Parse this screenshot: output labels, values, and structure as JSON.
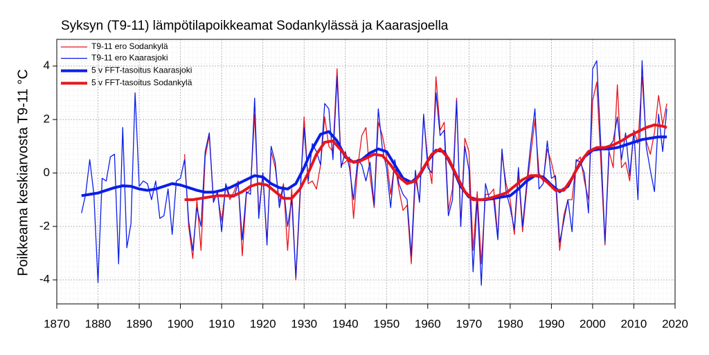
{
  "chart_data": {
    "type": "line",
    "title": "Syksyn (T9-11) lämpötilapoikkeamat Sodankylässä ja Kaarasjoella",
    "y_label": "Poikkeama keskiarvosta T9-11 °C",
    "xlim": [
      1870,
      2020
    ],
    "xticks": [
      1870,
      1880,
      1890,
      1900,
      1910,
      1920,
      1930,
      1940,
      1950,
      1960,
      1970,
      1980,
      1990,
      2000,
      2010,
      2020
    ],
    "ylim": [
      -4.9,
      5
    ],
    "yticks": [
      -4,
      -2,
      0,
      2,
      4
    ],
    "grid": true,
    "legend": "upper left",
    "x": [
      1876,
      1877,
      1878,
      1879,
      1880,
      1881,
      1882,
      1883,
      1884,
      1885,
      1886,
      1887,
      1888,
      1889,
      1890,
      1891,
      1892,
      1893,
      1894,
      1895,
      1896,
      1897,
      1898,
      1899,
      1900,
      1901,
      1902,
      1903,
      1904,
      1905,
      1906,
      1907,
      1908,
      1909,
      1910,
      1911,
      1912,
      1913,
      1914,
      1915,
      1916,
      1917,
      1918,
      1919,
      1920,
      1921,
      1922,
      1923,
      1924,
      1925,
      1926,
      1927,
      1928,
      1929,
      1930,
      1931,
      1932,
      1933,
      1934,
      1935,
      1936,
      1937,
      1938,
      1939,
      1940,
      1941,
      1942,
      1943,
      1944,
      1945,
      1946,
      1947,
      1948,
      1949,
      1950,
      1951,
      1952,
      1953,
      1954,
      1955,
      1956,
      1957,
      1958,
      1959,
      1960,
      1961,
      1962,
      1963,
      1964,
      1965,
      1966,
      1967,
      1968,
      1969,
      1970,
      1971,
      1972,
      1973,
      1974,
      1975,
      1976,
      1977,
      1978,
      1979,
      1980,
      1981,
      1982,
      1983,
      1984,
      1985,
      1986,
      1987,
      1988,
      1989,
      1990,
      1991,
      1992,
      1993,
      1994,
      1995,
      1996,
      1997,
      1998,
      1999,
      2000,
      2001,
      2002,
      2003,
      2004,
      2005,
      2006,
      2007,
      2008,
      2009,
      2010,
      2011,
      2012,
      2013,
      2014,
      2015,
      2016,
      2017,
      2018
    ],
    "series": [
      {
        "name": "T9-11 ero Sodankylä",
        "color": "#e8141c",
        "width": 1.3,
        "values": [
          null,
          null,
          null,
          null,
          null,
          null,
          null,
          null,
          null,
          null,
          null,
          null,
          null,
          null,
          null,
          null,
          null,
          null,
          null,
          null,
          null,
          null,
          null,
          null,
          null,
          0.7,
          -2.0,
          -3.2,
          -1.0,
          -2.9,
          0.6,
          1.4,
          -1.0,
          -0.8,
          -1.8,
          -0.5,
          -1.0,
          -0.7,
          -0.3,
          -3.1,
          -0.8,
          -0.6,
          2.2,
          -1.5,
          0.0,
          -2.6,
          0.8,
          0.2,
          -1.1,
          -0.4,
          -2.9,
          -0.6,
          -4.0,
          -1.0,
          2.1,
          -0.4,
          -0.3,
          -0.6,
          0.3,
          2.1,
          1.0,
          0.8,
          3.9,
          0.3,
          0.4,
          0.6,
          -1.7,
          0.2,
          1.4,
          1.7,
          -0.1,
          -1.3,
          1.9,
          1.4,
          0.6,
          -0.8,
          0.4,
          -0.6,
          -1.4,
          -1.2,
          -3.4,
          -0.2,
          -1.0,
          2.1,
          0.5,
          -0.4,
          3.6,
          1.6,
          1.9,
          -1.4,
          -0.6,
          2.8,
          -2.0,
          1.3,
          0.8,
          -2.9,
          -0.7,
          -3.4,
          -0.8,
          -0.8,
          -0.6,
          -2.4,
          0.7,
          -0.4,
          -1.0,
          -2.3,
          0.0,
          -2.2,
          -0.6,
          0.7,
          2.0,
          0.0,
          -0.3,
          0.9,
          0.4,
          -0.3,
          -2.9,
          -1.6,
          -1.0,
          -1.0,
          0.4,
          0.6,
          -0.3,
          -1.0,
          2.7,
          3.4,
          0.4,
          -2.7,
          0.8,
          0.2,
          3.3,
          0.2,
          0.4,
          -0.3,
          1.6,
          1.1,
          3.6,
          1.2,
          0.7,
          1.5,
          2.9,
          1.8,
          2.6
        ]
      },
      {
        "name": "T9-11 ero Kaarasjoki",
        "color": "#0a1ee6",
        "width": 1.3,
        "values": [
          -1.5,
          -0.8,
          0.5,
          -0.8,
          -4.1,
          -0.2,
          -0.3,
          0.6,
          0.7,
          -3.4,
          1.7,
          -2.8,
          -1.9,
          3.0,
          -0.5,
          -0.3,
          -0.4,
          -1.0,
          -0.3,
          -1.7,
          -1.6,
          -0.6,
          -2.3,
          -0.3,
          -0.2,
          0.5,
          -1.8,
          -2.9,
          -1.3,
          -2.0,
          0.8,
          1.5,
          -1.1,
          -0.7,
          -2.2,
          -0.4,
          -0.9,
          -0.9,
          -0.4,
          -2.5,
          -0.7,
          -0.8,
          2.8,
          -1.7,
          0.0,
          -2.7,
          1.0,
          0.4,
          -1.3,
          -0.5,
          -2.0,
          -1.0,
          -3.9,
          -0.8,
          1.7,
          -0.3,
          1.1,
          0.8,
          0.3,
          2.6,
          2.4,
          0.5,
          3.6,
          0.2,
          0.8,
          0.2,
          -1.0,
          0.5,
          0.3,
          -0.3,
          0.4,
          -1.2,
          2.4,
          0.9,
          0.2,
          -1.3,
          0.5,
          -0.4,
          -0.8,
          -1.0,
          -3.1,
          0.1,
          -1.1,
          2.2,
          0.2,
          0.0,
          3.0,
          1.4,
          1.6,
          -1.6,
          -1.0,
          2.7,
          -2.0,
          1.0,
          0.1,
          -3.7,
          -1.0,
          -4.2,
          -0.4,
          -1.0,
          -1.0,
          -2.5,
          0.9,
          -0.7,
          -1.3,
          -2.1,
          0.2,
          -2.0,
          -0.4,
          1.1,
          2.4,
          -0.6,
          -0.4,
          1.2,
          -0.2,
          -0.1,
          -2.6,
          -1.8,
          -1.0,
          -2.2,
          0.5,
          0.4,
          0.0,
          -1.5,
          3.9,
          4.2,
          1.0,
          -2.6,
          1.0,
          1.2,
          2.1,
          0.5,
          1.5,
          -0.1,
          1.6,
          -1.0,
          4.2,
          1.0,
          0.1,
          -0.7,
          2.2,
          0.8,
          2.4
        ]
      },
      {
        "name": "5 v FFT-tasoitus Kaarasjoki",
        "color": "#0a1ee6",
        "width": 4,
        "x": [
          1876,
          1878,
          1880,
          1882,
          1884,
          1886,
          1888,
          1890,
          1892,
          1894,
          1896,
          1898,
          1900,
          1902,
          1904,
          1906,
          1908,
          1910,
          1912,
          1914,
          1916,
          1918,
          1920,
          1922,
          1924,
          1926,
          1928,
          1930,
          1932,
          1934,
          1936,
          1938,
          1940,
          1942,
          1944,
          1946,
          1948,
          1950,
          1952,
          1954,
          1956,
          1958,
          1960,
          1962,
          1964,
          1966,
          1968,
          1970,
          1972,
          1974,
          1976,
          1978,
          1980,
          1982,
          1984,
          1986,
          1988,
          1990,
          1992,
          1994,
          1996,
          1998,
          2000,
          2002,
          2004,
          2006,
          2008,
          2010,
          2012,
          2014,
          2016,
          2018
        ],
        "values": [
          -0.85,
          -0.8,
          -0.75,
          -0.65,
          -0.55,
          -0.48,
          -0.5,
          -0.6,
          -0.65,
          -0.6,
          -0.5,
          -0.4,
          -0.45,
          -0.55,
          -0.65,
          -0.72,
          -0.72,
          -0.65,
          -0.55,
          -0.4,
          -0.25,
          -0.1,
          -0.15,
          -0.4,
          -0.55,
          -0.6,
          -0.4,
          0.2,
          0.9,
          1.45,
          1.55,
          1.2,
          0.6,
          0.4,
          0.5,
          0.75,
          0.9,
          0.8,
          0.3,
          -0.2,
          -0.35,
          -0.1,
          0.45,
          0.85,
          0.8,
          0.2,
          -0.5,
          -0.9,
          -1.0,
          -1.0,
          -0.95,
          -0.9,
          -0.85,
          -0.6,
          -0.3,
          -0.1,
          -0.15,
          -0.45,
          -0.7,
          -0.5,
          0.1,
          0.6,
          0.85,
          0.9,
          0.9,
          0.95,
          1.05,
          1.15,
          1.25,
          1.3,
          1.35,
          1.35
        ]
      },
      {
        "name": "5 v FFT-tasoitus Sodankylä",
        "color": "#e8141c",
        "width": 4,
        "x": [
          1901,
          1903,
          1905,
          1907,
          1909,
          1911,
          1913,
          1915,
          1917,
          1919,
          1921,
          1923,
          1925,
          1927,
          1929,
          1931,
          1933,
          1935,
          1937,
          1939,
          1941,
          1943,
          1945,
          1947,
          1949,
          1951,
          1953,
          1955,
          1957,
          1959,
          1961,
          1963,
          1965,
          1967,
          1969,
          1971,
          1973,
          1975,
          1977,
          1979,
          1981,
          1983,
          1985,
          1987,
          1989,
          1991,
          1993,
          1995,
          1997,
          1999,
          2001,
          2003,
          2005,
          2007,
          2009,
          2011,
          2013,
          2015,
          2017,
          2018
        ],
        "values": [
          -1.0,
          -1.0,
          -0.95,
          -0.9,
          -0.85,
          -0.85,
          -0.85,
          -0.7,
          -0.5,
          -0.4,
          -0.45,
          -0.7,
          -0.95,
          -0.95,
          -0.6,
          0.0,
          0.7,
          1.15,
          1.2,
          0.85,
          0.45,
          0.4,
          0.55,
          0.7,
          0.65,
          0.3,
          -0.15,
          -0.4,
          -0.3,
          0.2,
          0.7,
          0.9,
          0.55,
          -0.1,
          -0.7,
          -1.0,
          -1.0,
          -0.95,
          -0.85,
          -0.75,
          -0.5,
          -0.25,
          -0.1,
          -0.1,
          -0.35,
          -0.65,
          -0.65,
          -0.2,
          0.4,
          0.8,
          0.95,
          0.95,
          1.05,
          1.2,
          1.4,
          1.55,
          1.7,
          1.8,
          1.75,
          1.7
        ]
      }
    ]
  }
}
